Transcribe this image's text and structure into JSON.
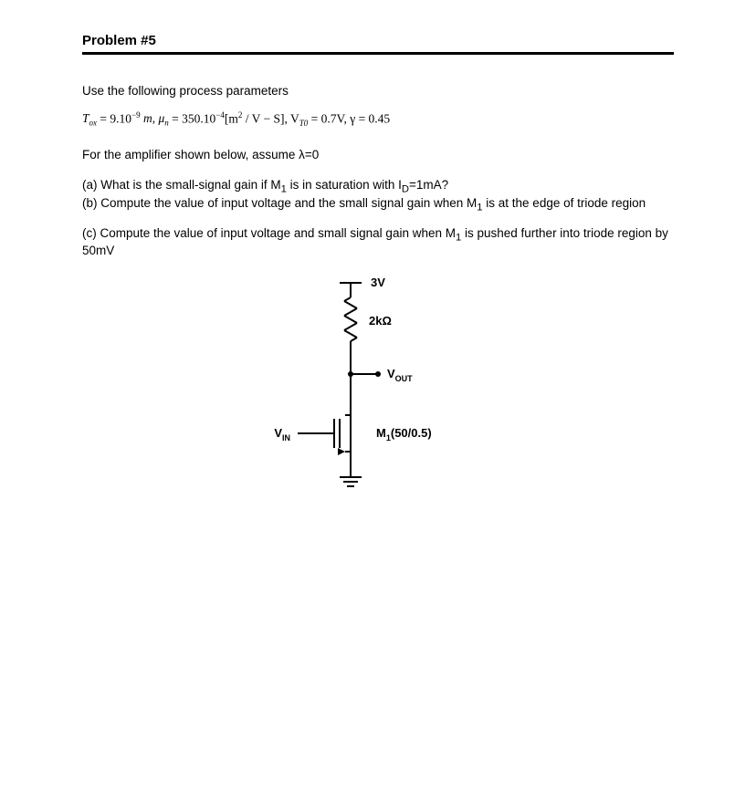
{
  "heading": "Problem #5",
  "intro": "Use the following process parameters",
  "params": {
    "Tox_pre": "T",
    "Tox_sub": "ox",
    "Tox_val": " = 9.10",
    "Tox_exp": "−9",
    "mu_pre": "m, μ",
    "mu_sub": "n",
    "mu_val_a": " = 350.10",
    "mu_exp": "−4",
    "mu_unit": "[m",
    "mu_unit_sup": "2",
    "mu_unit_tail": " / V − S], V",
    "vt_sub": "T0",
    "vt_val": " = 0.7V, γ = 0.45"
  },
  "assume": "For the amplifier shown below, assume λ=0",
  "qa_a": "(a) What is the small-signal gain if M",
  "qa_a_sub": "1",
  "qa_a_tail": " is in saturation with I",
  "qa_a_isub": "D",
  "qa_a_end": "=1mA?",
  "qa_b": "(b) Compute the value of input voltage and the small signal gain when M",
  "qa_b_sub": "1",
  "qa_b_tail": " is at the edge of triode region",
  "qa_c": "(c) Compute the value of input voltage and small signal gain when M",
  "qa_c_sub": "1",
  "qa_c_tail": " is pushed further into triode region by 50mV",
  "circuit": {
    "stroke": "#000000",
    "stroke_w": 2,
    "vdd": "3V",
    "r_label": "2kΩ",
    "vout_pre": "V",
    "vout_sub": "OUT",
    "vin_pre": "V",
    "vin_sub": "IN",
    "mos_label": "M",
    "mos_sub": "1",
    "mos_tail": "(50/0.5)",
    "node_r": 3
  }
}
